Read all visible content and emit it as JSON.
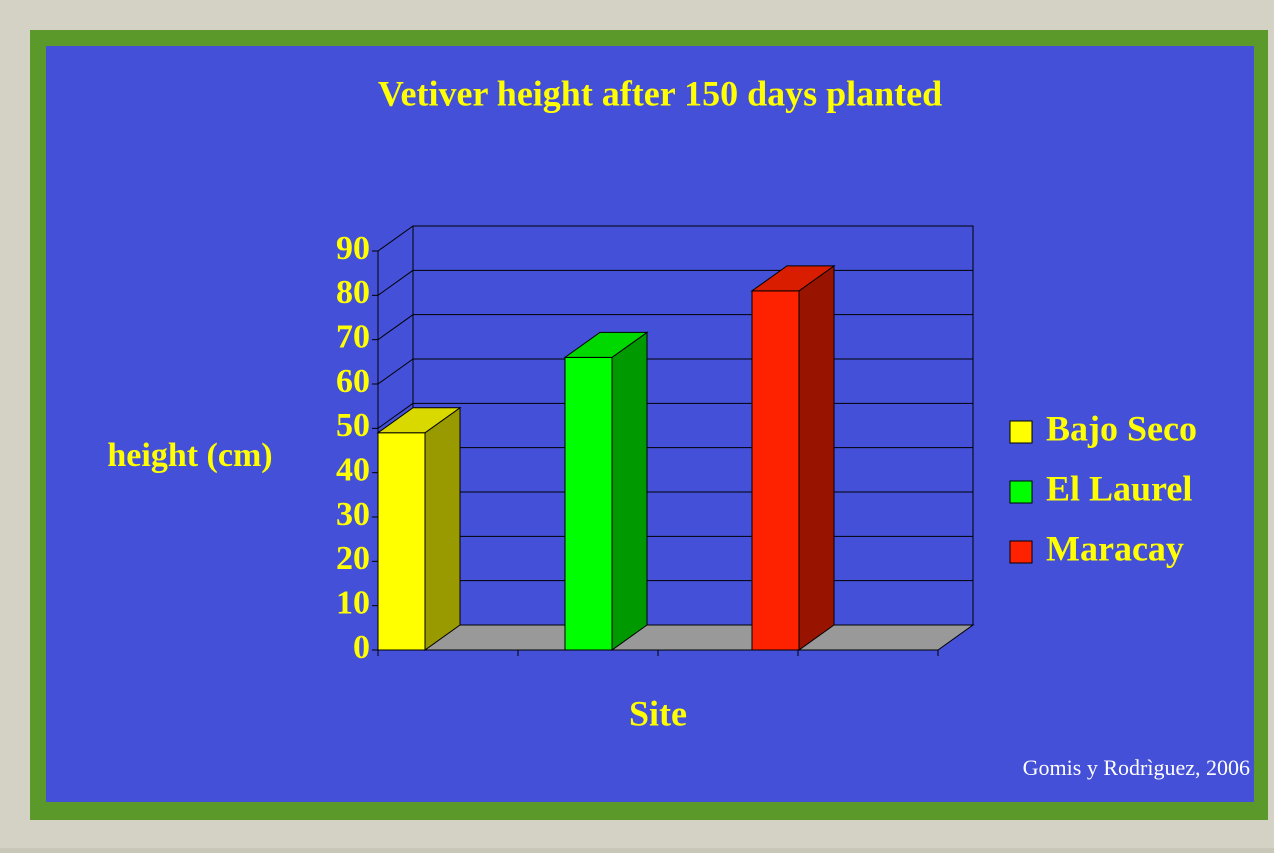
{
  "chart_data": {
    "type": "bar3d",
    "title": "Vetiver height after 150 days planted",
    "y_label": "height (cm)",
    "x_label": "Site",
    "source": "Gomis y Rodrìguez, 2006",
    "series": [
      {
        "name": "Bajo Seco",
        "color": "#ffff00",
        "values": [
          49
        ]
      },
      {
        "name": "El Laurel",
        "color": "#00ff00",
        "values": [
          66
        ]
      },
      {
        "name": "Maracay",
        "color": "#ff2200",
        "values": [
          81
        ]
      }
    ],
    "ylim": [
      0,
      90
    ],
    "yticks": [
      0,
      10,
      20,
      30,
      40,
      50,
      60,
      70,
      80,
      90
    ],
    "grid": true,
    "legend": "right"
  }
}
